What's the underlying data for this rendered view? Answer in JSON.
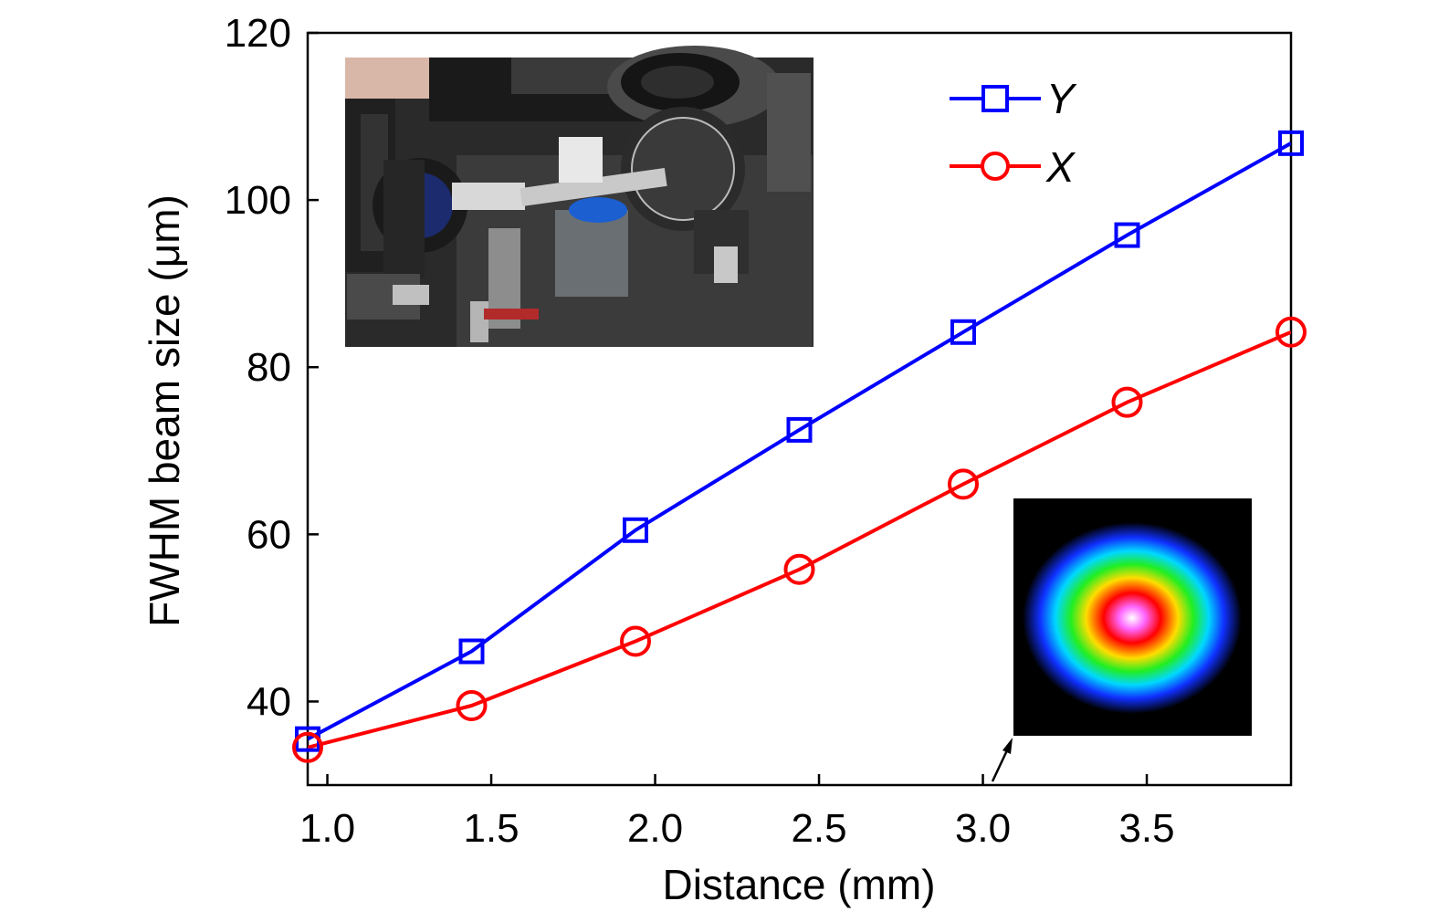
{
  "chart_data": {
    "type": "line",
    "xlabel": "Distance (mm)",
    "ylabel": "FWHM beam size (μm)",
    "xlim": [
      0.94,
      3.94
    ],
    "ylim": [
      30,
      120
    ],
    "xticks": [
      1.0,
      1.5,
      2.0,
      2.5,
      3.0,
      3.5
    ],
    "xtick_labels": [
      "1.0",
      "1.5",
      "2.0",
      "2.5",
      "3.0",
      "3.5"
    ],
    "yticks": [
      40,
      60,
      80,
      100,
      120
    ],
    "ytick_labels": [
      "40",
      "60",
      "80",
      "100",
      "120"
    ],
    "grid": false,
    "legend_position": "top-right",
    "series": [
      {
        "name": "Y",
        "color": "#0000ff",
        "marker": "square",
        "x": [
          0.94,
          1.44,
          1.94,
          2.44,
          2.94,
          3.44,
          3.94
        ],
        "y": [
          35.5,
          46.0,
          60.5,
          72.5,
          84.2,
          95.8,
          106.8
        ]
      },
      {
        "name": "X",
        "color": "#ff0000",
        "marker": "circle",
        "x": [
          0.94,
          1.44,
          1.94,
          2.44,
          2.94,
          3.44,
          3.94
        ],
        "y": [
          34.5,
          39.5,
          47.2,
          55.8,
          66.0,
          75.8,
          84.2
        ]
      }
    ],
    "insets": [
      {
        "kind": "photo",
        "subject": "optical-setup-photo"
      },
      {
        "kind": "image",
        "subject": "beam-profile-spot"
      }
    ]
  }
}
